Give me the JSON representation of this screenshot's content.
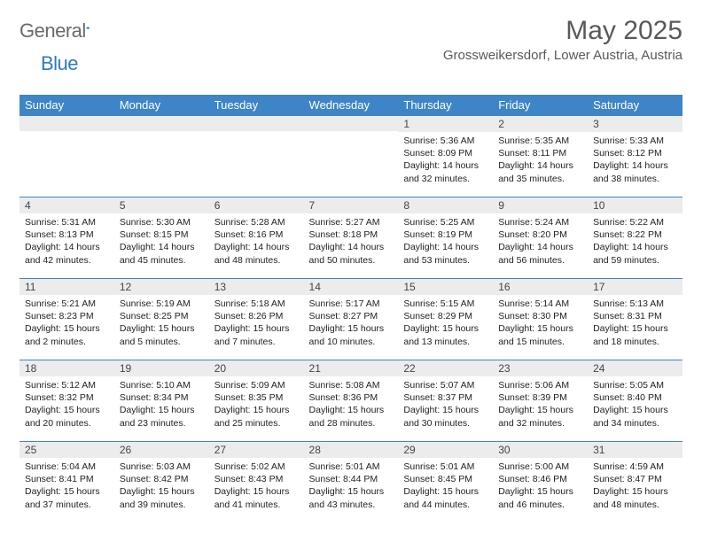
{
  "brand": {
    "part1": "General",
    "part2": "Blue"
  },
  "title": "May 2025",
  "location": "Grossweikersdorf, Lower Austria, Austria",
  "colors": {
    "header_bg": "#3d85c6",
    "header_text": "#ffffff",
    "daynum_bg": "#ececec",
    "border": "#3d85c6",
    "title_color": "#595959",
    "brand_gray": "#6a6a6a",
    "brand_blue": "#2f7bbf"
  },
  "days_of_week": [
    "Sunday",
    "Monday",
    "Tuesday",
    "Wednesday",
    "Thursday",
    "Friday",
    "Saturday"
  ],
  "weeks": [
    [
      null,
      null,
      null,
      null,
      {
        "n": "1",
        "sr": "5:36 AM",
        "ss": "8:09 PM",
        "dl": "14 hours and 32 minutes."
      },
      {
        "n": "2",
        "sr": "5:35 AM",
        "ss": "8:11 PM",
        "dl": "14 hours and 35 minutes."
      },
      {
        "n": "3",
        "sr": "5:33 AM",
        "ss": "8:12 PM",
        "dl": "14 hours and 38 minutes."
      }
    ],
    [
      {
        "n": "4",
        "sr": "5:31 AM",
        "ss": "8:13 PM",
        "dl": "14 hours and 42 minutes."
      },
      {
        "n": "5",
        "sr": "5:30 AM",
        "ss": "8:15 PM",
        "dl": "14 hours and 45 minutes."
      },
      {
        "n": "6",
        "sr": "5:28 AM",
        "ss": "8:16 PM",
        "dl": "14 hours and 48 minutes."
      },
      {
        "n": "7",
        "sr": "5:27 AM",
        "ss": "8:18 PM",
        "dl": "14 hours and 50 minutes."
      },
      {
        "n": "8",
        "sr": "5:25 AM",
        "ss": "8:19 PM",
        "dl": "14 hours and 53 minutes."
      },
      {
        "n": "9",
        "sr": "5:24 AM",
        "ss": "8:20 PM",
        "dl": "14 hours and 56 minutes."
      },
      {
        "n": "10",
        "sr": "5:22 AM",
        "ss": "8:22 PM",
        "dl": "14 hours and 59 minutes."
      }
    ],
    [
      {
        "n": "11",
        "sr": "5:21 AM",
        "ss": "8:23 PM",
        "dl": "15 hours and 2 minutes."
      },
      {
        "n": "12",
        "sr": "5:19 AM",
        "ss": "8:25 PM",
        "dl": "15 hours and 5 minutes."
      },
      {
        "n": "13",
        "sr": "5:18 AM",
        "ss": "8:26 PM",
        "dl": "15 hours and 7 minutes."
      },
      {
        "n": "14",
        "sr": "5:17 AM",
        "ss": "8:27 PM",
        "dl": "15 hours and 10 minutes."
      },
      {
        "n": "15",
        "sr": "5:15 AM",
        "ss": "8:29 PM",
        "dl": "15 hours and 13 minutes."
      },
      {
        "n": "16",
        "sr": "5:14 AM",
        "ss": "8:30 PM",
        "dl": "15 hours and 15 minutes."
      },
      {
        "n": "17",
        "sr": "5:13 AM",
        "ss": "8:31 PM",
        "dl": "15 hours and 18 minutes."
      }
    ],
    [
      {
        "n": "18",
        "sr": "5:12 AM",
        "ss": "8:32 PM",
        "dl": "15 hours and 20 minutes."
      },
      {
        "n": "19",
        "sr": "5:10 AM",
        "ss": "8:34 PM",
        "dl": "15 hours and 23 minutes."
      },
      {
        "n": "20",
        "sr": "5:09 AM",
        "ss": "8:35 PM",
        "dl": "15 hours and 25 minutes."
      },
      {
        "n": "21",
        "sr": "5:08 AM",
        "ss": "8:36 PM",
        "dl": "15 hours and 28 minutes."
      },
      {
        "n": "22",
        "sr": "5:07 AM",
        "ss": "8:37 PM",
        "dl": "15 hours and 30 minutes."
      },
      {
        "n": "23",
        "sr": "5:06 AM",
        "ss": "8:39 PM",
        "dl": "15 hours and 32 minutes."
      },
      {
        "n": "24",
        "sr": "5:05 AM",
        "ss": "8:40 PM",
        "dl": "15 hours and 34 minutes."
      }
    ],
    [
      {
        "n": "25",
        "sr": "5:04 AM",
        "ss": "8:41 PM",
        "dl": "15 hours and 37 minutes."
      },
      {
        "n": "26",
        "sr": "5:03 AM",
        "ss": "8:42 PM",
        "dl": "15 hours and 39 minutes."
      },
      {
        "n": "27",
        "sr": "5:02 AM",
        "ss": "8:43 PM",
        "dl": "15 hours and 41 minutes."
      },
      {
        "n": "28",
        "sr": "5:01 AM",
        "ss": "8:44 PM",
        "dl": "15 hours and 43 minutes."
      },
      {
        "n": "29",
        "sr": "5:01 AM",
        "ss": "8:45 PM",
        "dl": "15 hours and 44 minutes."
      },
      {
        "n": "30",
        "sr": "5:00 AM",
        "ss": "8:46 PM",
        "dl": "15 hours and 46 minutes."
      },
      {
        "n": "31",
        "sr": "4:59 AM",
        "ss": "8:47 PM",
        "dl": "15 hours and 48 minutes."
      }
    ]
  ],
  "labels": {
    "sunrise": "Sunrise:",
    "sunset": "Sunset:",
    "daylight": "Daylight:"
  }
}
